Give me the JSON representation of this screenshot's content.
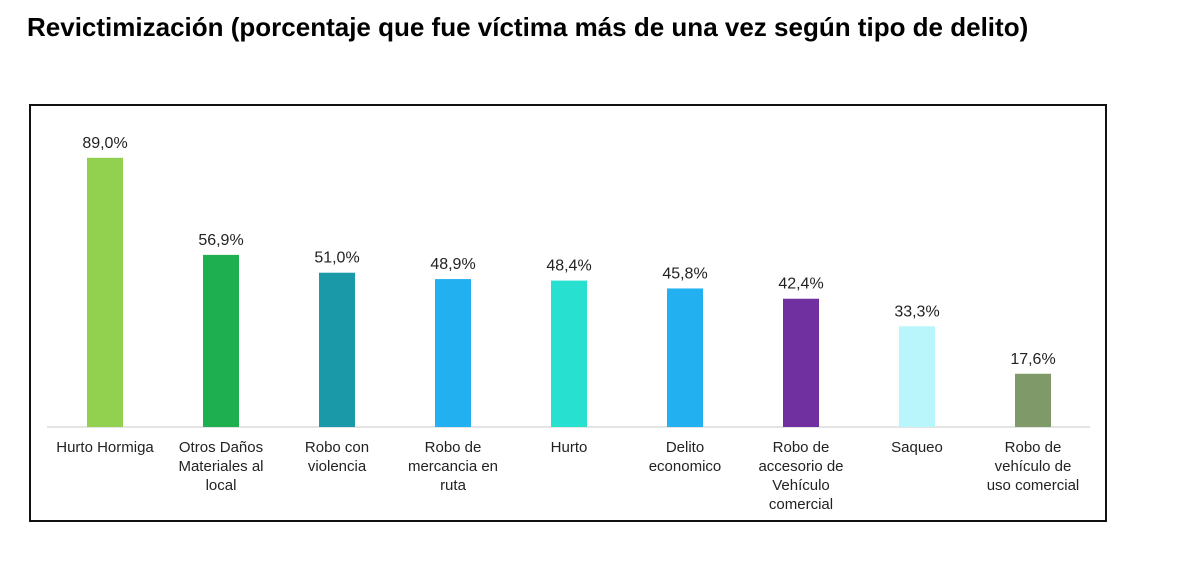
{
  "title": "Revictimización (porcentaje que fue víctima más de una vez según tipo de delito)",
  "chart_data": {
    "type": "bar",
    "title": "Revictimización (porcentaje que fue víctima más de una vez según tipo de delito)",
    "categories": [
      "Hurto Hormiga",
      "Otros Daños Materiales al local",
      "Robo con violencia",
      "Robo de mercancia en ruta",
      "Hurto",
      "Delito economico",
      "Robo de accesorio de Vehículo comercial",
      "Saqueo",
      "Robo de vehículo de uso comercial"
    ],
    "category_lines": [
      [
        "Hurto Hormiga"
      ],
      [
        "Otros Daños",
        "Materiales al",
        "local"
      ],
      [
        "Robo con",
        "violencia"
      ],
      [
        "Robo de",
        "mercancia en",
        "ruta"
      ],
      [
        "Hurto"
      ],
      [
        "Delito",
        "economico"
      ],
      [
        "Robo de",
        "accesorio de",
        "Vehículo",
        "comercial"
      ],
      [
        "Saqueo"
      ],
      [
        "Robo de",
        "vehículo de",
        "uso comercial"
      ]
    ],
    "values": [
      89.0,
      56.9,
      51.0,
      48.9,
      48.4,
      45.8,
      42.4,
      33.3,
      17.6
    ],
    "data_labels": [
      "89,0%",
      "56,9%",
      "51,0%",
      "48,9%",
      "48,4%",
      "45,8%",
      "42,4%",
      "33,3%",
      "17,6%"
    ],
    "colors": [
      "#92d050",
      "#1daf50",
      "#1a99a8",
      "#22b0f0",
      "#28e0d0",
      "#22b0f0",
      "#7030a0",
      "#b8f6fc",
      "#7f9a68"
    ],
    "xlabel": "",
    "ylabel": "",
    "ylim": [
      0,
      100
    ],
    "grid": false,
    "legend": "none"
  }
}
